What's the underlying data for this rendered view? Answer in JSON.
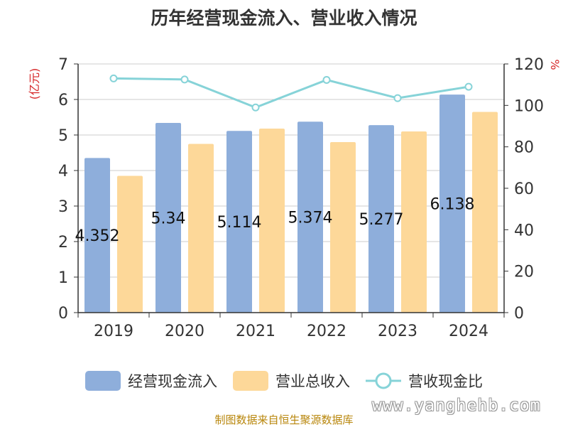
{
  "title": "历年经营现金流入、营业收入情况",
  "chart_data": {
    "type": "bar",
    "categories": [
      "2019",
      "2020",
      "2021",
      "2022",
      "2023",
      "2024"
    ],
    "series": [
      {
        "name": "经营现金流入",
        "type": "bar",
        "axis": "left",
        "color": "#8eaedb",
        "values": [
          4.352,
          5.34,
          5.114,
          5.374,
          5.277,
          6.138
        ],
        "data_labels": [
          "4.352",
          "5.34",
          "5.114",
          "5.374",
          "5.277",
          "6.138"
        ]
      },
      {
        "name": "营业总收入",
        "type": "bar",
        "axis": "left",
        "color": "#fdd899",
        "values": [
          3.85,
          4.75,
          5.18,
          4.8,
          5.1,
          5.65
        ]
      },
      {
        "name": "营收现金比",
        "type": "line",
        "axis": "right",
        "color": "#86d3d8",
        "values": [
          113,
          112.5,
          99,
          112.3,
          103.5,
          109
        ]
      }
    ],
    "y_left": {
      "label": "(亿元)",
      "ylim": [
        0,
        7
      ],
      "ticks": [
        "0",
        "1",
        "2",
        "3",
        "4",
        "5",
        "6",
        "7"
      ]
    },
    "y_right": {
      "label": "%",
      "ylim": [
        0,
        120
      ],
      "ticks": [
        "0",
        "20",
        "40",
        "60",
        "80",
        "100",
        "120"
      ]
    },
    "grid": true,
    "legend_position": "bottom"
  },
  "source": "制图数据来自恒生聚源数据库",
  "watermark": "www.yanghehb.com"
}
